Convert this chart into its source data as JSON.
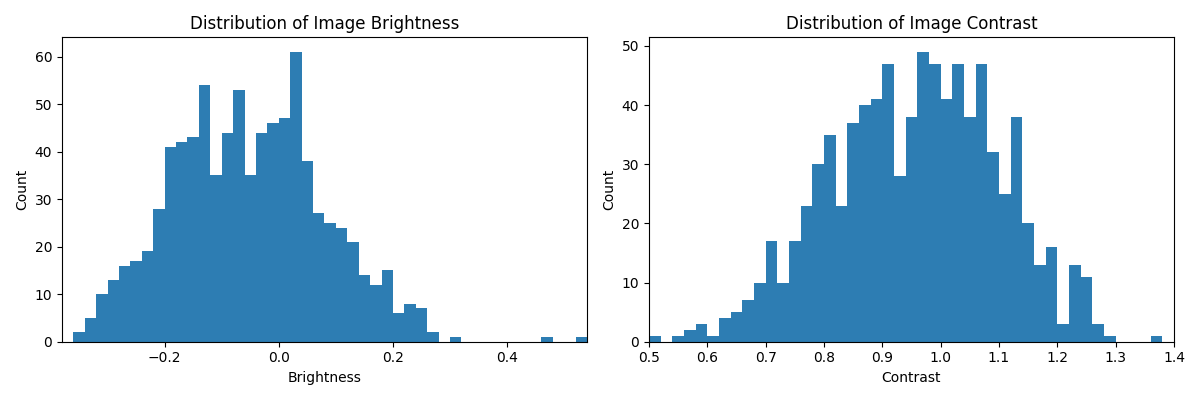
{
  "brightness_counts": [
    0,
    2,
    5,
    10,
    13,
    16,
    17,
    19,
    28,
    41,
    42,
    43,
    54,
    35,
    44,
    53,
    35,
    44,
    46,
    47,
    61,
    38,
    27,
    25,
    24,
    21,
    14,
    12,
    15,
    6,
    8,
    7,
    2,
    0,
    1,
    0,
    0,
    0,
    0,
    0,
    0,
    0,
    1,
    0,
    0,
    1
  ],
  "brightness_bin_edges": [
    -0.38,
    -0.36,
    -0.34,
    -0.32,
    -0.3,
    -0.28,
    -0.26,
    -0.24,
    -0.22,
    -0.2,
    -0.18,
    -0.16,
    -0.14,
    -0.12,
    -0.1,
    -0.08,
    -0.06,
    -0.04,
    -0.02,
    0.0,
    0.02,
    0.04,
    0.06,
    0.08,
    0.1,
    0.12,
    0.14,
    0.16,
    0.18,
    0.2,
    0.22,
    0.24,
    0.26,
    0.28,
    0.3,
    0.32,
    0.34,
    0.36,
    0.38,
    0.4,
    0.42,
    0.44,
    0.46,
    0.48,
    0.5,
    0.52,
    0.54
  ],
  "contrast_counts": [
    1,
    0,
    1,
    2,
    3,
    1,
    4,
    5,
    7,
    10,
    17,
    10,
    17,
    23,
    30,
    35,
    23,
    37,
    40,
    41,
    47,
    28,
    38,
    49,
    47,
    41,
    47,
    38,
    47,
    32,
    25,
    38,
    20,
    13,
    16,
    3,
    13,
    11,
    3,
    1,
    0,
    0,
    0,
    1,
    0
  ],
  "contrast_bin_edges": [
    0.5,
    0.52,
    0.54,
    0.56,
    0.58,
    0.6,
    0.62,
    0.64,
    0.66,
    0.68,
    0.7,
    0.72,
    0.74,
    0.76,
    0.78,
    0.8,
    0.82,
    0.84,
    0.86,
    0.88,
    0.9,
    0.92,
    0.94,
    0.96,
    0.98,
    1.0,
    1.02,
    1.04,
    1.06,
    1.08,
    1.1,
    1.12,
    1.14,
    1.16,
    1.18,
    1.2,
    1.22,
    1.24,
    1.26,
    1.28,
    1.3,
    1.32,
    1.34,
    1.36,
    1.38,
    1.4
  ],
  "bar_color": "#2d7db3",
  "title_brightness": "Distribution of Image Brightness",
  "title_contrast": "Distribution of Image Contrast",
  "xlabel_brightness": "Brightness",
  "xlabel_contrast": "Contrast",
  "ylabel": "Count",
  "figsize": [
    12,
    4
  ],
  "dpi": 100
}
